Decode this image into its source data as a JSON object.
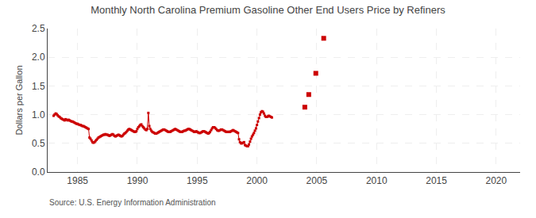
{
  "chart_data": {
    "type": "line",
    "title": "Monthly North Carolina Premium Gasoline Other End Users Price by Refiners",
    "ylabel": "Dollars per Gallon",
    "annotations": [
      "Source: U.S. Energy Information Administration"
    ],
    "series": [
      {
        "type": "line",
        "marker": "square",
        "color": "#cc0000",
        "x": [
          1983.0,
          1983.08,
          1983.17,
          1983.25,
          1983.33,
          1983.42,
          1983.5,
          1983.58,
          1983.67,
          1983.75,
          1983.83,
          1983.92,
          1984.0,
          1984.08,
          1984.17,
          1984.25,
          1984.33,
          1984.42,
          1984.5,
          1984.58,
          1984.67,
          1984.75,
          1984.83,
          1984.92,
          1985.0,
          1985.08,
          1985.17,
          1985.25,
          1985.33,
          1985.42,
          1985.5,
          1985.58,
          1985.67,
          1985.75,
          1985.83,
          1985.92,
          1986.0,
          1986.08,
          1986.17,
          1986.25,
          1986.33,
          1986.42,
          1986.5,
          1986.58,
          1986.67,
          1986.75,
          1986.83,
          1986.92,
          1987.0,
          1987.08,
          1987.17,
          1987.25,
          1987.33,
          1987.42,
          1987.5,
          1987.58,
          1987.67,
          1987.75,
          1987.83,
          1987.92,
          1988.0,
          1988.08,
          1988.17,
          1988.25,
          1988.33,
          1988.42,
          1988.5,
          1988.58,
          1988.67,
          1988.75,
          1988.83,
          1988.92,
          1989.0,
          1989.08,
          1989.17,
          1989.25,
          1989.33,
          1989.42,
          1989.5,
          1989.58,
          1989.67,
          1989.75,
          1989.83,
          1989.92,
          1990.0,
          1990.08,
          1990.17,
          1990.25,
          1990.33,
          1990.42,
          1990.5,
          1990.58,
          1990.67,
          1990.75,
          1990.83,
          1990.92,
          1991.0,
          1991.08,
          1991.17,
          1991.25,
          1991.33,
          1991.42,
          1991.5,
          1991.58,
          1991.67,
          1991.75,
          1991.83,
          1991.92,
          1992.0,
          1992.08,
          1992.17,
          1992.25,
          1992.33,
          1992.42,
          1992.5,
          1992.58,
          1992.67,
          1992.75,
          1992.83,
          1992.92,
          1993.0,
          1993.08,
          1993.17,
          1993.25,
          1993.33,
          1993.42,
          1993.5,
          1993.58,
          1993.67,
          1993.75,
          1993.83,
          1993.92,
          1994.0,
          1994.08,
          1994.17,
          1994.25,
          1994.33,
          1994.42,
          1994.5,
          1994.58,
          1994.67,
          1994.75,
          1994.83,
          1994.92,
          1995.0,
          1995.08,
          1995.17,
          1995.25,
          1995.33,
          1995.42,
          1995.5,
          1995.58,
          1995.67,
          1995.75,
          1995.83,
          1995.92,
          1996.0,
          1996.08,
          1996.17,
          1996.25,
          1996.33,
          1996.42,
          1996.5,
          1996.58,
          1996.67,
          1996.75,
          1996.83,
          1996.92,
          1997.0,
          1997.08,
          1997.17,
          1997.25,
          1997.33,
          1997.42,
          1997.5,
          1997.58,
          1997.67,
          1997.75,
          1997.83,
          1997.92,
          1998.0,
          1998.08,
          1998.17,
          1998.25,
          1998.33,
          1998.42,
          1998.5,
          1998.58,
          1998.67,
          1998.75,
          1998.83,
          1998.92,
          1999.0,
          1999.08,
          1999.17,
          1999.25,
          1999.33,
          1999.42,
          1999.5,
          1999.58,
          1999.67,
          1999.75,
          1999.83,
          1999.92,
          2000.0,
          2000.08,
          2000.17,
          2000.25,
          2000.33,
          2000.42,
          2000.5,
          2000.58,
          2000.67,
          2000.75,
          2000.83,
          2000.92,
          2001.0,
          2001.08,
          2001.17,
          2001.25
        ],
        "values": [
          0.98,
          1.0,
          1.02,
          1.01,
          0.99,
          0.97,
          0.96,
          0.94,
          0.93,
          0.92,
          0.91,
          0.9,
          0.92,
          0.91,
          0.9,
          0.91,
          0.9,
          0.89,
          0.88,
          0.88,
          0.87,
          0.86,
          0.85,
          0.84,
          0.84,
          0.83,
          0.82,
          0.82,
          0.81,
          0.8,
          0.8,
          0.79,
          0.78,
          0.77,
          0.76,
          0.75,
          0.6,
          0.58,
          0.55,
          0.52,
          0.51,
          0.52,
          0.54,
          0.56,
          0.58,
          0.6,
          0.61,
          0.62,
          0.63,
          0.64,
          0.65,
          0.65,
          0.66,
          0.65,
          0.65,
          0.64,
          0.63,
          0.64,
          0.65,
          0.66,
          0.65,
          0.63,
          0.62,
          0.63,
          0.64,
          0.65,
          0.64,
          0.63,
          0.62,
          0.63,
          0.65,
          0.67,
          0.68,
          0.7,
          0.72,
          0.74,
          0.75,
          0.74,
          0.73,
          0.72,
          0.71,
          0.7,
          0.7,
          0.71,
          0.75,
          0.78,
          0.8,
          0.82,
          0.83,
          0.8,
          0.78,
          0.76,
          0.74,
          0.73,
          0.75,
          1.03,
          0.8,
          0.75,
          0.72,
          0.7,
          0.69,
          0.68,
          0.67,
          0.67,
          0.68,
          0.69,
          0.7,
          0.71,
          0.72,
          0.73,
          0.74,
          0.74,
          0.73,
          0.72,
          0.71,
          0.7,
          0.7,
          0.7,
          0.71,
          0.72,
          0.73,
          0.74,
          0.75,
          0.74,
          0.73,
          0.72,
          0.71,
          0.7,
          0.7,
          0.7,
          0.71,
          0.72,
          0.72,
          0.73,
          0.74,
          0.75,
          0.75,
          0.74,
          0.73,
          0.72,
          0.71,
          0.7,
          0.7,
          0.71,
          0.7,
          0.69,
          0.68,
          0.68,
          0.69,
          0.7,
          0.71,
          0.71,
          0.7,
          0.69,
          0.68,
          0.67,
          0.68,
          0.7,
          0.73,
          0.76,
          0.78,
          0.78,
          0.77,
          0.75,
          0.73,
          0.72,
          0.72,
          0.73,
          0.74,
          0.74,
          0.73,
          0.72,
          0.71,
          0.7,
          0.7,
          0.7,
          0.7,
          0.7,
          0.71,
          0.72,
          0.73,
          0.72,
          0.71,
          0.7,
          0.69,
          0.68,
          0.57,
          0.52,
          0.5,
          0.5,
          0.51,
          0.52,
          0.47,
          0.46,
          0.45,
          0.45,
          0.48,
          0.53,
          0.58,
          0.62,
          0.65,
          0.68,
          0.72,
          0.76,
          0.82,
          0.88,
          0.94,
          1.0,
          1.04,
          1.06,
          1.05,
          1.02,
          0.98,
          0.96,
          0.96,
          0.97,
          0.98,
          0.97,
          0.96,
          0.95
        ]
      },
      {
        "type": "scatter",
        "marker": "square",
        "color": "#cc0000",
        "x": [
          2004.0,
          2004.33,
          2004.92,
          2005.58
        ],
        "values": [
          1.13,
          1.35,
          1.72,
          2.33
        ]
      }
    ],
    "xlim": [
      1982.5,
      2022
    ],
    "ylim": [
      0.0,
      2.5
    ],
    "xticks": [
      1985,
      1990,
      1995,
      2000,
      2005,
      2010,
      2015,
      2020
    ],
    "yticks": [
      {
        "value": 0.0,
        "label": "0.0"
      },
      0.5,
      {
        "value": 1.0,
        "label": "1.0"
      },
      1.5,
      {
        "value": 2.0,
        "label": "2.0"
      },
      2.5
    ],
    "grid": true
  }
}
